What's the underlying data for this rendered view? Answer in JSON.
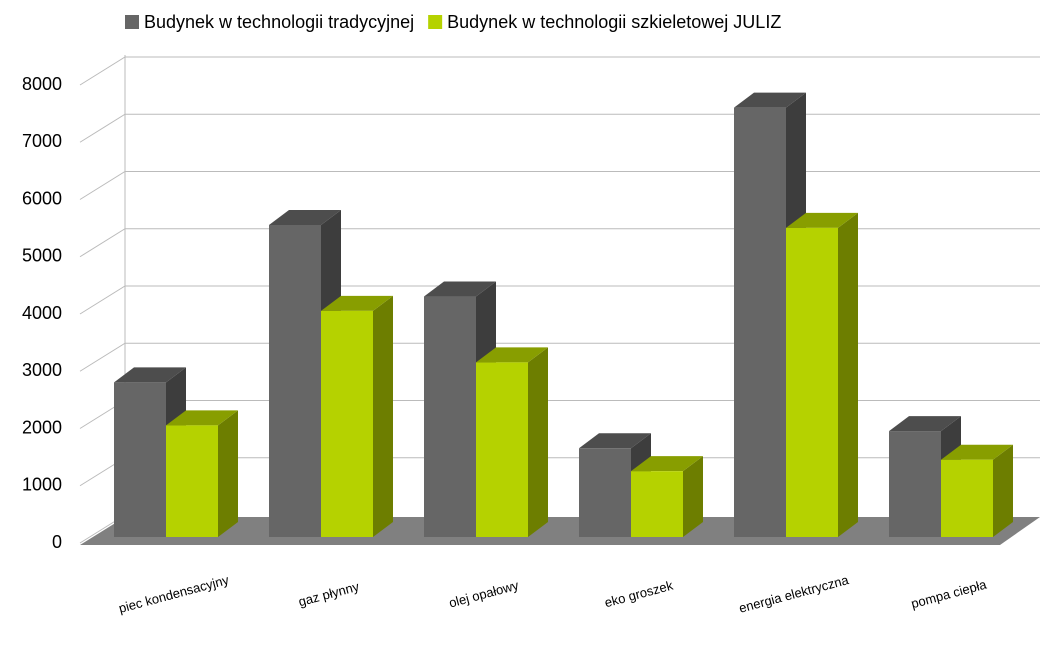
{
  "chart_data": {
    "type": "bar3d",
    "categories": [
      "piec kondensacyjny",
      "gaz płynny",
      "olej opałowy",
      "eko groszek",
      "energia elektryczna",
      "pompa ciepła"
    ],
    "series": [
      {
        "name": "Budynek w technologii tradycyjnej",
        "color": "#666666",
        "values": [
          2700,
          5450,
          4200,
          1550,
          7500,
          1850
        ]
      },
      {
        "name": "Budynek w technologii szkieletowej JULIZ",
        "color": "#b5d200",
        "values": [
          1950,
          3950,
          3050,
          1150,
          5400,
          1350
        ]
      }
    ],
    "ylim": [
      0,
      8000
    ],
    "yticks": [
      0,
      1000,
      2000,
      3000,
      4000,
      5000,
      6000,
      7000,
      8000
    ],
    "grid": true,
    "legend": "top"
  }
}
